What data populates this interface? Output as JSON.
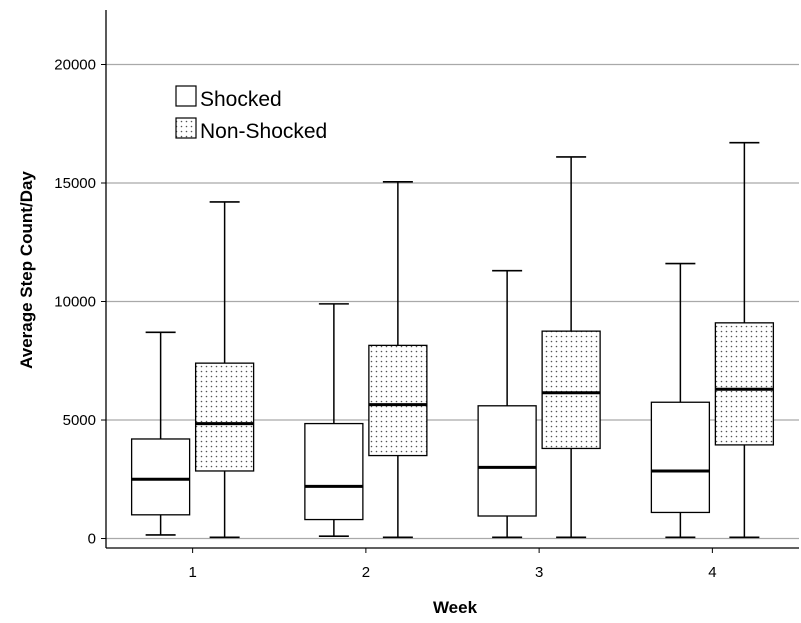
{
  "chart_data": {
    "type": "boxplot",
    "xlabel": "Week",
    "ylabel": "Average Step Count/Day",
    "categories": [
      "1",
      "2",
      "3",
      "4"
    ],
    "ylim": [
      -400,
      22300
    ],
    "yticks": [
      0,
      5000,
      10000,
      15000,
      20000
    ],
    "grid": true,
    "legend": "top-left",
    "series": [
      {
        "name": "Shocked",
        "pattern": "none",
        "boxes": [
          {
            "min": 150,
            "q1": 1000,
            "median": 2500,
            "q3": 4200,
            "max": 8700
          },
          {
            "min": 100,
            "q1": 800,
            "median": 2200,
            "q3": 4850,
            "max": 9900
          },
          {
            "min": 50,
            "q1": 950,
            "median": 3000,
            "q3": 5600,
            "max": 11300
          },
          {
            "min": 50,
            "q1": 1100,
            "median": 2850,
            "q3": 5750,
            "max": 11600
          }
        ]
      },
      {
        "name": "Non-Shocked",
        "pattern": "dotted",
        "boxes": [
          {
            "min": 50,
            "q1": 2850,
            "median": 4850,
            "q3": 7400,
            "max": 14200
          },
          {
            "min": 50,
            "q1": 3500,
            "median": 5650,
            "q3": 8150,
            "max": 15050
          },
          {
            "min": 50,
            "q1": 3800,
            "median": 6150,
            "q3": 8750,
            "max": 16100
          },
          {
            "min": 50,
            "q1": 3950,
            "median": 6300,
            "q3": 9100,
            "max": 16700
          }
        ]
      }
    ]
  }
}
